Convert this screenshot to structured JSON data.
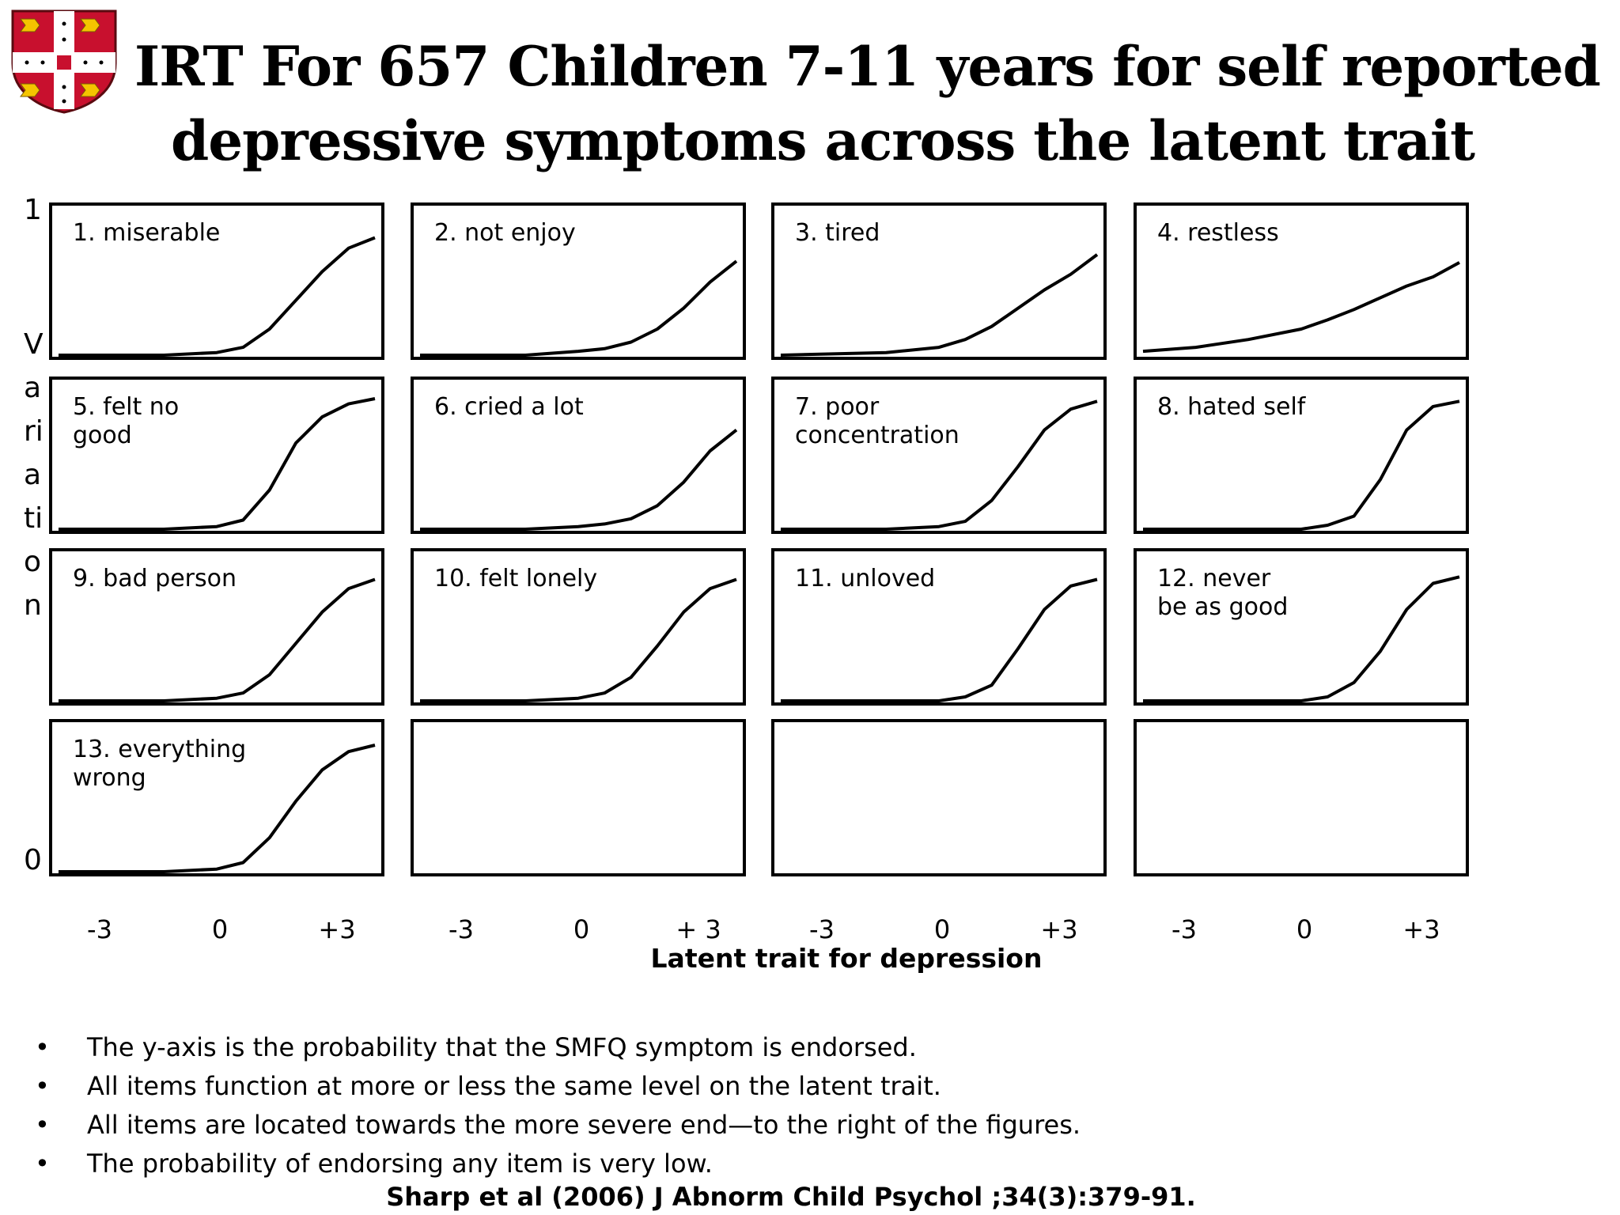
{
  "title": {
    "line1": "IRT For 657 Children 7-11 years for self reported",
    "line2": "depressive symptoms across the latent trait"
  },
  "crest": {
    "icon": "university-crest-icon",
    "colors": [
      "#c8102e",
      "#f5c400",
      "#ffffff"
    ]
  },
  "y_axis": {
    "top_label": "1",
    "label": "Variation",
    "bottom_label": "0"
  },
  "x_axis": {
    "title": "Latent trait for depression"
  },
  "notes": [
    "The y-axis is the probability that the SMFQ symptom is endorsed.",
    "All items function at more or less the same level on the latent trait.",
    "All items are located towards the more severe end—to the right of the figures.",
    "The probability of endorsing any item is very low."
  ],
  "citation": "Sharp et al (2006) J Abnorm Child Psychol ;34(3):379-91.",
  "chart_data": {
    "type": "line",
    "layout": "small-multiples 4 columns x 4 rows",
    "xlim": [
      -3,
      3
    ],
    "ylim": [
      0,
      1
    ],
    "x_ticks": [
      "-3",
      "0",
      "+3"
    ],
    "x_tick_labels_by_column": [
      [
        "-3",
        "0",
        "+3"
      ],
      [
        "-3",
        "0",
        "+ 3"
      ],
      [
        "-3",
        "0",
        "+3"
      ],
      [
        "-3",
        "0",
        "+3"
      ]
    ],
    "xlabel": "Latent trait for depression",
    "ylabel": "Variation",
    "panels": [
      {
        "label": [
          "1.  miserable"
        ],
        "x": [
          -3,
          -1,
          0,
          0.5,
          1,
          1.5,
          2,
          2.5,
          3
        ],
        "y": [
          0,
          0,
          0.02,
          0.06,
          0.2,
          0.42,
          0.64,
          0.82,
          0.9
        ]
      },
      {
        "label": [
          "2.  not enjoy"
        ],
        "x": [
          -3,
          -1,
          0,
          0.5,
          1,
          1.5,
          2,
          2.5,
          3
        ],
        "y": [
          0,
          0,
          0.03,
          0.05,
          0.1,
          0.2,
          0.36,
          0.56,
          0.72
        ]
      },
      {
        "label": [
          "3.  tired"
        ],
        "x": [
          -3,
          -1,
          0,
          0.5,
          1,
          1.5,
          2,
          2.5,
          3
        ],
        "y": [
          0,
          0.02,
          0.06,
          0.12,
          0.22,
          0.36,
          0.5,
          0.62,
          0.77
        ]
      },
      {
        "label": [
          "4.  restless"
        ],
        "x": [
          -3,
          -2,
          -1,
          0,
          0.5,
          1,
          1.5,
          2,
          2.5,
          3
        ],
        "y": [
          0.03,
          0.06,
          0.12,
          0.2,
          0.27,
          0.35,
          0.44,
          0.53,
          0.6,
          0.71
        ]
      },
      {
        "label": [
          "5.  felt no",
          "good"
        ],
        "x": [
          -3,
          -1,
          0,
          0.5,
          1,
          1.5,
          2,
          2.5,
          3
        ],
        "y": [
          0,
          0,
          0.02,
          0.07,
          0.3,
          0.66,
          0.86,
          0.96,
          1.0
        ]
      },
      {
        "label": [
          "6.  cried a lot"
        ],
        "x": [
          -3,
          -1,
          0,
          0.5,
          1,
          1.5,
          2,
          2.5,
          3
        ],
        "y": [
          0,
          0,
          0.02,
          0.04,
          0.08,
          0.18,
          0.36,
          0.6,
          0.76
        ]
      },
      {
        "label": [
          "7.  poor",
          "concentration"
        ],
        "x": [
          -3,
          -1,
          0,
          0.5,
          1,
          1.5,
          2,
          2.5,
          3
        ],
        "y": [
          0,
          0,
          0.02,
          0.06,
          0.22,
          0.48,
          0.76,
          0.92,
          0.98
        ]
      },
      {
        "label": [
          "8.  hated self"
        ],
        "x": [
          -3,
          -1,
          0,
          0.5,
          1,
          1.5,
          2,
          2.5,
          3
        ],
        "y": [
          0,
          0,
          0,
          0.03,
          0.1,
          0.38,
          0.76,
          0.94,
          0.98
        ]
      },
      {
        "label": [
          "9.  bad person"
        ],
        "x": [
          -3,
          -1,
          0,
          0.5,
          1,
          1.5,
          2,
          2.5,
          3
        ],
        "y": [
          0,
          0,
          0.02,
          0.06,
          0.2,
          0.44,
          0.68,
          0.86,
          0.93
        ]
      },
      {
        "label": [
          "10. felt lonely"
        ],
        "x": [
          -3,
          -1,
          0,
          0.5,
          1,
          1.5,
          2,
          2.5,
          3
        ],
        "y": [
          0,
          0,
          0.02,
          0.06,
          0.18,
          0.42,
          0.68,
          0.86,
          0.93
        ]
      },
      {
        "label": [
          "11. unloved"
        ],
        "x": [
          -3,
          -1,
          0,
          0.5,
          1,
          1.5,
          2,
          2.5,
          3
        ],
        "y": [
          0,
          0,
          0,
          0.03,
          0.12,
          0.4,
          0.7,
          0.88,
          0.93
        ]
      },
      {
        "label": [
          "12. never",
          "be as good"
        ],
        "x": [
          -3,
          -1,
          0,
          0.5,
          1,
          1.5,
          2,
          2.5,
          3
        ],
        "y": [
          0,
          0,
          0,
          0.03,
          0.14,
          0.38,
          0.7,
          0.9,
          0.95
        ]
      },
      {
        "label": [
          "13. everything",
          "wrong"
        ],
        "x": [
          -3,
          -1,
          0,
          0.5,
          1,
          1.5,
          2,
          2.5,
          3
        ],
        "y": [
          0,
          0,
          0.02,
          0.07,
          0.26,
          0.54,
          0.78,
          0.92,
          0.97
        ]
      },
      {
        "label": [],
        "x": [],
        "y": []
      },
      {
        "label": [],
        "x": [],
        "y": []
      },
      {
        "label": [],
        "x": [],
        "y": []
      }
    ]
  }
}
